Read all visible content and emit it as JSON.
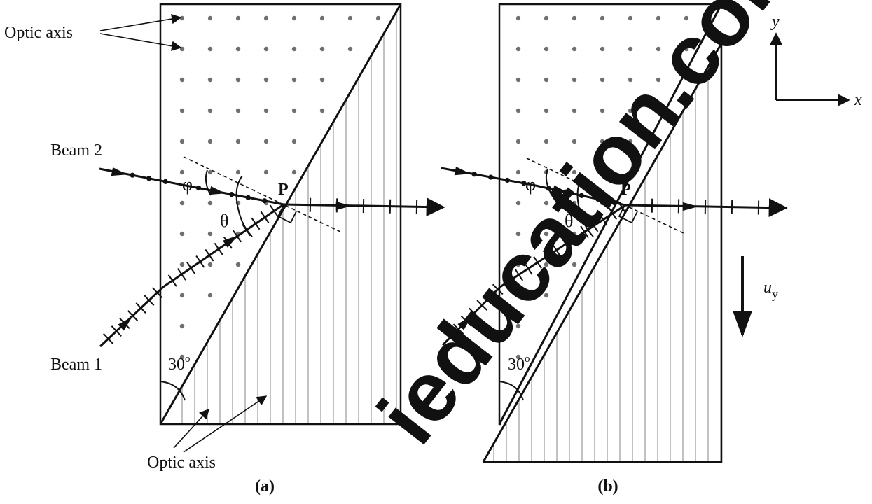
{
  "labels": {
    "optic_axis_top": "Optic axis",
    "optic_axis_bottom": "Optic axis",
    "beam2": "Beam 2",
    "beam1": "Beam 1",
    "phi": "φ",
    "theta": "θ",
    "point": "P",
    "angle_value": "30",
    "angle_unit": "o",
    "panel_a": "(a)",
    "panel_b": "(b)",
    "axis_y": "y",
    "axis_x": "x",
    "velocity_symbol": "u",
    "velocity_subscript": "y"
  },
  "watermark": {
    "text": "ieducation.com",
    "color": "#ff5a00"
  },
  "colors": {
    "ink": "#111111",
    "dots": "#6f6f6f",
    "hatch": "#9a9a9a"
  }
}
